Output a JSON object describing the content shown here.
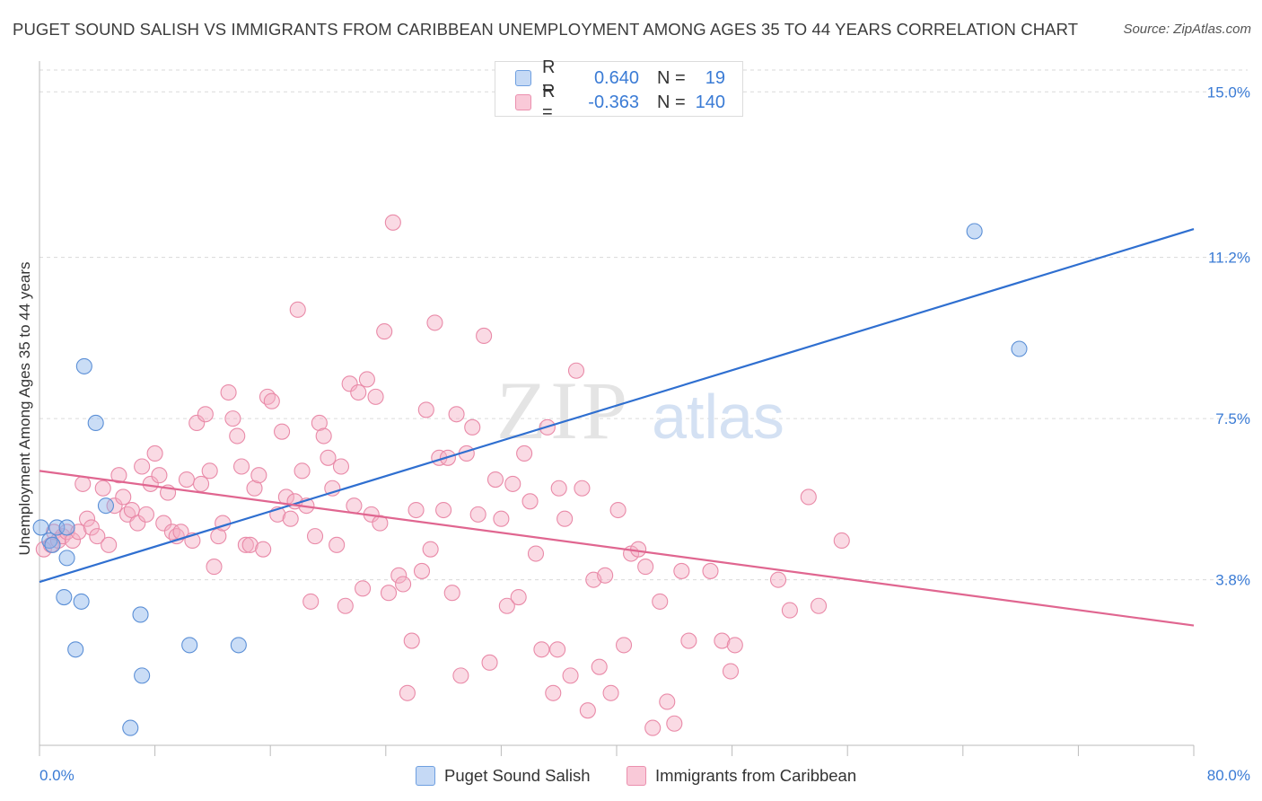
{
  "title": "PUGET SOUND SALISH VS IMMIGRANTS FROM CARIBBEAN UNEMPLOYMENT AMONG AGES 35 TO 44 YEARS CORRELATION CHART",
  "source": "Source: ZipAtlas.com",
  "watermark": {
    "zip": "ZIP",
    "atlas": "atlas"
  },
  "legend": {
    "rows": [
      {
        "r_label": "R =",
        "r_value": "0.640",
        "n_label": "N =",
        "n_value": "19"
      },
      {
        "r_label": "R =",
        "r_value": "-0.363",
        "n_label": "N =",
        "n_value": "140"
      }
    ]
  },
  "chart_data": {
    "type": "scatter",
    "title": "PUGET SOUND SALISH VS IMMIGRANTS FROM CARIBBEAN UNEMPLOYMENT AMONG AGES 35 TO 44 YEARS CORRELATION CHART",
    "xlabel": "",
    "ylabel": "Unemployment Among Ages 35 to 44 years",
    "xlim": [
      0,
      80
    ],
    "ylim": [
      0,
      15.5
    ],
    "x_tick_labels": [
      "0.0%",
      "80.0%"
    ],
    "y_ticks": [
      3.8,
      7.5,
      11.2,
      15.0
    ],
    "y_tick_labels": [
      "3.8%",
      "7.5%",
      "11.2%",
      "15.0%"
    ],
    "grid": "horizontal dashed",
    "legend_position": "top-center",
    "series": [
      {
        "name": "Puget Sound Salish",
        "color": "#8ab4ea",
        "stroke": "#5b8fd6",
        "line_color": "#2f6fd0",
        "r": 0.64,
        "n": 19,
        "trend": {
          "x0": 0,
          "y0": 3.75,
          "x1": 80,
          "y1": 11.85
        },
        "points": [
          [
            0.1,
            5.0
          ],
          [
            0.7,
            4.7
          ],
          [
            1.2,
            5.0
          ],
          [
            1.9,
            5.0
          ],
          [
            0.9,
            4.6
          ],
          [
            1.9,
            4.3
          ],
          [
            1.7,
            3.4
          ],
          [
            2.9,
            3.3
          ],
          [
            3.1,
            8.7
          ],
          [
            3.9,
            7.4
          ],
          [
            4.6,
            5.5
          ],
          [
            2.5,
            2.2
          ],
          [
            7.0,
            3.0
          ],
          [
            10.4,
            2.3
          ],
          [
            13.8,
            2.3
          ],
          [
            7.1,
            1.6
          ],
          [
            6.3,
            0.4
          ],
          [
            67.9,
            9.1
          ],
          [
            64.8,
            11.8
          ]
        ]
      },
      {
        "name": "Immigrants from Caribbean",
        "color": "#f4aec3",
        "stroke": "#e98aa8",
        "line_color": "#e06690",
        "r": -0.363,
        "n": 140,
        "trend": {
          "x0": 0,
          "y0": 6.3,
          "x1": 80,
          "y1": 2.75
        },
        "points": [
          [
            0.3,
            4.5
          ],
          [
            0.8,
            4.6
          ],
          [
            1.0,
            4.9
          ],
          [
            1.3,
            4.7
          ],
          [
            1.6,
            4.8
          ],
          [
            1.9,
            4.9
          ],
          [
            2.3,
            4.7
          ],
          [
            2.7,
            4.9
          ],
          [
            3.0,
            6.0
          ],
          [
            3.3,
            5.2
          ],
          [
            3.6,
            5.0
          ],
          [
            4.0,
            4.8
          ],
          [
            4.4,
            5.9
          ],
          [
            4.8,
            4.6
          ],
          [
            5.2,
            5.5
          ],
          [
            5.5,
            6.2
          ],
          [
            5.8,
            5.7
          ],
          [
            6.1,
            5.3
          ],
          [
            6.4,
            5.4
          ],
          [
            6.8,
            5.1
          ],
          [
            7.1,
            6.4
          ],
          [
            7.4,
            5.3
          ],
          [
            7.7,
            6.0
          ],
          [
            8.0,
            6.7
          ],
          [
            8.3,
            6.2
          ],
          [
            8.6,
            5.1
          ],
          [
            8.9,
            5.8
          ],
          [
            9.2,
            4.9
          ],
          [
            9.5,
            4.8
          ],
          [
            9.8,
            4.9
          ],
          [
            10.2,
            6.1
          ],
          [
            10.6,
            4.7
          ],
          [
            10.9,
            7.4
          ],
          [
            11.2,
            6.0
          ],
          [
            11.5,
            7.6
          ],
          [
            11.8,
            6.3
          ],
          [
            12.1,
            4.1
          ],
          [
            12.4,
            4.8
          ],
          [
            12.7,
            5.1
          ],
          [
            13.1,
            8.1
          ],
          [
            13.4,
            7.5
          ],
          [
            13.7,
            7.1
          ],
          [
            14.0,
            6.4
          ],
          [
            14.3,
            4.6
          ],
          [
            14.6,
            4.6
          ],
          [
            14.9,
            5.9
          ],
          [
            15.2,
            6.2
          ],
          [
            15.5,
            4.5
          ],
          [
            15.8,
            8.0
          ],
          [
            16.1,
            7.9
          ],
          [
            16.5,
            5.3
          ],
          [
            16.8,
            7.2
          ],
          [
            17.1,
            5.7
          ],
          [
            17.4,
            5.2
          ],
          [
            17.7,
            5.6
          ],
          [
            17.9,
            10.0
          ],
          [
            18.2,
            6.3
          ],
          [
            18.5,
            5.5
          ],
          [
            18.8,
            3.3
          ],
          [
            19.1,
            4.8
          ],
          [
            19.4,
            7.4
          ],
          [
            19.7,
            7.1
          ],
          [
            20.0,
            6.6
          ],
          [
            20.3,
            5.9
          ],
          [
            20.6,
            4.6
          ],
          [
            20.9,
            6.4
          ],
          [
            21.2,
            3.2
          ],
          [
            21.5,
            8.3
          ],
          [
            21.8,
            5.5
          ],
          [
            22.1,
            8.1
          ],
          [
            22.4,
            3.6
          ],
          [
            22.7,
            8.4
          ],
          [
            23.0,
            5.3
          ],
          [
            23.3,
            8.0
          ],
          [
            23.6,
            5.1
          ],
          [
            23.9,
            9.5
          ],
          [
            24.2,
            3.5
          ],
          [
            24.5,
            12.0
          ],
          [
            24.9,
            3.9
          ],
          [
            25.2,
            3.7
          ],
          [
            25.5,
            1.2
          ],
          [
            25.8,
            2.4
          ],
          [
            26.1,
            5.4
          ],
          [
            26.5,
            4.0
          ],
          [
            26.8,
            7.7
          ],
          [
            27.1,
            4.5
          ],
          [
            27.4,
            9.7
          ],
          [
            27.7,
            6.6
          ],
          [
            28.0,
            5.4
          ],
          [
            28.3,
            6.6
          ],
          [
            28.6,
            3.5
          ],
          [
            28.9,
            7.6
          ],
          [
            29.2,
            1.6
          ],
          [
            29.6,
            6.7
          ],
          [
            30.0,
            7.3
          ],
          [
            30.4,
            5.3
          ],
          [
            30.8,
            9.4
          ],
          [
            31.2,
            1.9
          ],
          [
            31.6,
            6.1
          ],
          [
            32.0,
            5.2
          ],
          [
            32.4,
            3.2
          ],
          [
            32.8,
            6.0
          ],
          [
            33.2,
            3.4
          ],
          [
            33.6,
            6.7
          ],
          [
            34.0,
            5.6
          ],
          [
            34.4,
            4.4
          ],
          [
            34.8,
            2.2
          ],
          [
            35.2,
            7.3
          ],
          [
            35.6,
            1.2
          ],
          [
            36.0,
            5.9
          ],
          [
            36.4,
            5.2
          ],
          [
            36.8,
            1.6
          ],
          [
            37.2,
            8.6
          ],
          [
            37.6,
            5.9
          ],
          [
            38.0,
            0.8
          ],
          [
            38.4,
            3.8
          ],
          [
            38.8,
            1.8
          ],
          [
            39.2,
            3.9
          ],
          [
            39.6,
            1.2
          ],
          [
            40.1,
            5.4
          ],
          [
            40.5,
            2.3
          ],
          [
            41.0,
            4.4
          ],
          [
            41.5,
            4.5
          ],
          [
            42.0,
            4.1
          ],
          [
            42.5,
            0.4
          ],
          [
            43.0,
            3.3
          ],
          [
            43.5,
            1.0
          ],
          [
            44.0,
            0.5
          ],
          [
            44.5,
            4.0
          ],
          [
            45.0,
            2.4
          ],
          [
            46.5,
            4.0
          ],
          [
            47.3,
            2.4
          ],
          [
            47.9,
            1.7
          ],
          [
            48.2,
            2.3
          ],
          [
            51.2,
            3.8
          ],
          [
            52.0,
            3.1
          ],
          [
            53.3,
            5.7
          ],
          [
            55.6,
            4.7
          ],
          [
            54.0,
            3.2
          ],
          [
            35.9,
            2.2
          ]
        ]
      }
    ]
  }
}
